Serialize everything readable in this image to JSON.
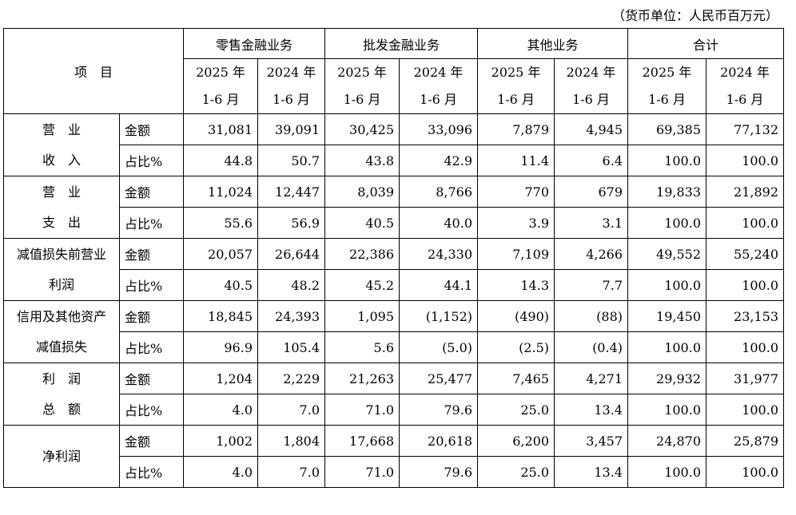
{
  "unit_note": "（货币单位：人民币百万元）",
  "header": {
    "item": "项　目",
    "groups": [
      "零售金融业务",
      "批发金融业务",
      "其他业务",
      "合计"
    ],
    "year_a": "2025 年",
    "year_b": "2024 年",
    "period": "1-6 月"
  },
  "metric_labels": {
    "amount": "金额",
    "ratio": "占比%"
  },
  "rows": [
    {
      "label_lines": [
        "营　业",
        "收　入"
      ],
      "amount": [
        "31,081",
        "39,091",
        "30,425",
        "33,096",
        "7,879",
        "4,945",
        "69,385",
        "77,132"
      ],
      "ratio": [
        "44.8",
        "50.7",
        "43.8",
        "42.9",
        "11.4",
        "6.4",
        "100.0",
        "100.0"
      ]
    },
    {
      "label_lines": [
        "营　业",
        "支　出"
      ],
      "amount": [
        "11,024",
        "12,447",
        "8,039",
        "8,766",
        "770",
        "679",
        "19,833",
        "21,892"
      ],
      "ratio": [
        "55.6",
        "56.9",
        "40.5",
        "40.0",
        "3.9",
        "3.1",
        "100.0",
        "100.0"
      ]
    },
    {
      "label_lines": [
        "减值损失前营业",
        "利润"
      ],
      "amount": [
        "20,057",
        "26,644",
        "22,386",
        "24,330",
        "7,109",
        "4,266",
        "49,552",
        "55,240"
      ],
      "ratio": [
        "40.5",
        "48.2",
        "45.2",
        "44.1",
        "14.3",
        "7.7",
        "100.0",
        "100.0"
      ]
    },
    {
      "label_lines": [
        "信用及其他资产",
        "减值损失"
      ],
      "amount": [
        "18,845",
        "24,393",
        "1,095",
        "(1,152)",
        "(490)",
        "(88)",
        "19,450",
        "23,153"
      ],
      "ratio": [
        "96.9",
        "105.4",
        "5.6",
        "(5.0)",
        "(2.5)",
        "(0.4)",
        "100.0",
        "100.0"
      ]
    },
    {
      "label_lines": [
        "利　润",
        "总　额"
      ],
      "amount": [
        "1,204",
        "2,229",
        "21,263",
        "25,477",
        "7,465",
        "4,271",
        "29,932",
        "31,977"
      ],
      "ratio": [
        "4.0",
        "7.0",
        "71.0",
        "79.6",
        "25.0",
        "13.4",
        "100.0",
        "100.0"
      ]
    },
    {
      "label_lines": [
        "净利润"
      ],
      "amount": [
        "1,002",
        "1,804",
        "17,668",
        "20,618",
        "6,200",
        "3,457",
        "24,870",
        "25,879"
      ],
      "ratio": [
        "4.0",
        "7.0",
        "71.0",
        "79.6",
        "25.0",
        "13.4",
        "100.0",
        "100.0"
      ]
    }
  ]
}
